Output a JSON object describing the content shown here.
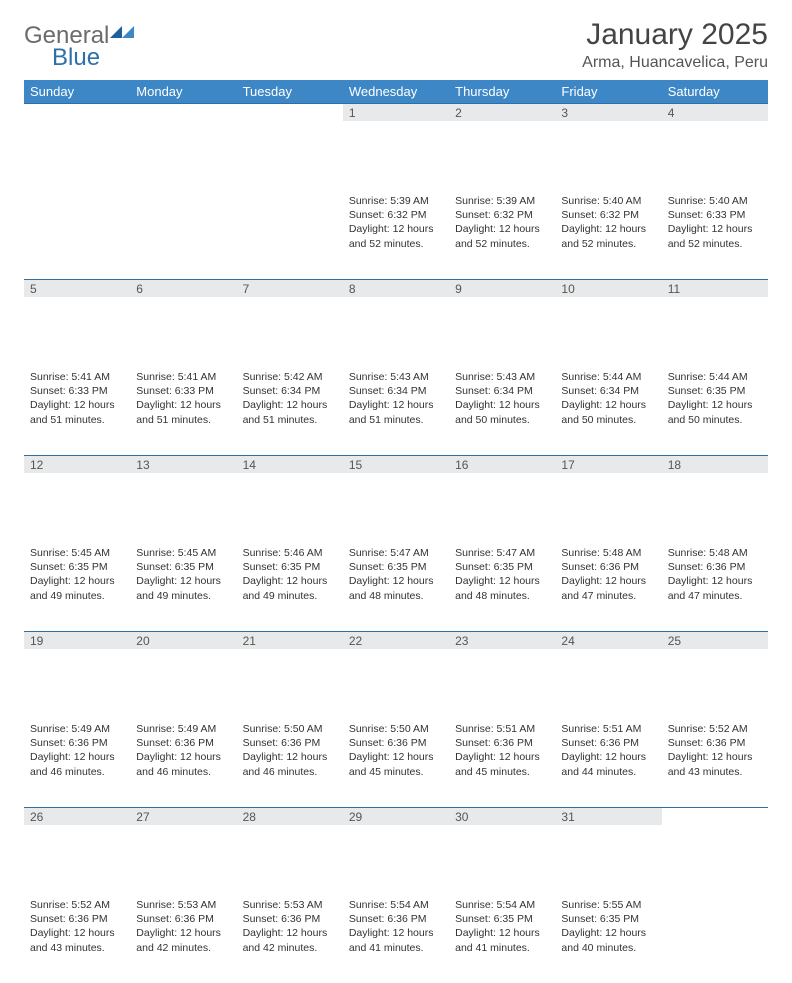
{
  "logo": {
    "text1": "General",
    "text2": "Blue"
  },
  "title": "January 2025",
  "location": "Arma, Huancavelica, Peru",
  "colors": {
    "header_bg": "#3d87c7",
    "header_border": "#2f6fa8",
    "daynum_bg": "#e7e9eb",
    "logo_gray": "#6b6b6b",
    "logo_blue": "#2f6fa8"
  },
  "weekdays": [
    "Sunday",
    "Monday",
    "Tuesday",
    "Wednesday",
    "Thursday",
    "Friday",
    "Saturday"
  ],
  "weeks": [
    [
      {
        "n": "",
        "sunrise": "",
        "sunset": "",
        "daylight": ""
      },
      {
        "n": "",
        "sunrise": "",
        "sunset": "",
        "daylight": ""
      },
      {
        "n": "",
        "sunrise": "",
        "sunset": "",
        "daylight": ""
      },
      {
        "n": "1",
        "sunrise": "5:39 AM",
        "sunset": "6:32 PM",
        "daylight": "12 hours and 52 minutes."
      },
      {
        "n": "2",
        "sunrise": "5:39 AM",
        "sunset": "6:32 PM",
        "daylight": "12 hours and 52 minutes."
      },
      {
        "n": "3",
        "sunrise": "5:40 AM",
        "sunset": "6:32 PM",
        "daylight": "12 hours and 52 minutes."
      },
      {
        "n": "4",
        "sunrise": "5:40 AM",
        "sunset": "6:33 PM",
        "daylight": "12 hours and 52 minutes."
      }
    ],
    [
      {
        "n": "5",
        "sunrise": "5:41 AM",
        "sunset": "6:33 PM",
        "daylight": "12 hours and 51 minutes."
      },
      {
        "n": "6",
        "sunrise": "5:41 AM",
        "sunset": "6:33 PM",
        "daylight": "12 hours and 51 minutes."
      },
      {
        "n": "7",
        "sunrise": "5:42 AM",
        "sunset": "6:34 PM",
        "daylight": "12 hours and 51 minutes."
      },
      {
        "n": "8",
        "sunrise": "5:43 AM",
        "sunset": "6:34 PM",
        "daylight": "12 hours and 51 minutes."
      },
      {
        "n": "9",
        "sunrise": "5:43 AM",
        "sunset": "6:34 PM",
        "daylight": "12 hours and 50 minutes."
      },
      {
        "n": "10",
        "sunrise": "5:44 AM",
        "sunset": "6:34 PM",
        "daylight": "12 hours and 50 minutes."
      },
      {
        "n": "11",
        "sunrise": "5:44 AM",
        "sunset": "6:35 PM",
        "daylight": "12 hours and 50 minutes."
      }
    ],
    [
      {
        "n": "12",
        "sunrise": "5:45 AM",
        "sunset": "6:35 PM",
        "daylight": "12 hours and 49 minutes."
      },
      {
        "n": "13",
        "sunrise": "5:45 AM",
        "sunset": "6:35 PM",
        "daylight": "12 hours and 49 minutes."
      },
      {
        "n": "14",
        "sunrise": "5:46 AM",
        "sunset": "6:35 PM",
        "daylight": "12 hours and 49 minutes."
      },
      {
        "n": "15",
        "sunrise": "5:47 AM",
        "sunset": "6:35 PM",
        "daylight": "12 hours and 48 minutes."
      },
      {
        "n": "16",
        "sunrise": "5:47 AM",
        "sunset": "6:35 PM",
        "daylight": "12 hours and 48 minutes."
      },
      {
        "n": "17",
        "sunrise": "5:48 AM",
        "sunset": "6:36 PM",
        "daylight": "12 hours and 47 minutes."
      },
      {
        "n": "18",
        "sunrise": "5:48 AM",
        "sunset": "6:36 PM",
        "daylight": "12 hours and 47 minutes."
      }
    ],
    [
      {
        "n": "19",
        "sunrise": "5:49 AM",
        "sunset": "6:36 PM",
        "daylight": "12 hours and 46 minutes."
      },
      {
        "n": "20",
        "sunrise": "5:49 AM",
        "sunset": "6:36 PM",
        "daylight": "12 hours and 46 minutes."
      },
      {
        "n": "21",
        "sunrise": "5:50 AM",
        "sunset": "6:36 PM",
        "daylight": "12 hours and 46 minutes."
      },
      {
        "n": "22",
        "sunrise": "5:50 AM",
        "sunset": "6:36 PM",
        "daylight": "12 hours and 45 minutes."
      },
      {
        "n": "23",
        "sunrise": "5:51 AM",
        "sunset": "6:36 PM",
        "daylight": "12 hours and 45 minutes."
      },
      {
        "n": "24",
        "sunrise": "5:51 AM",
        "sunset": "6:36 PM",
        "daylight": "12 hours and 44 minutes."
      },
      {
        "n": "25",
        "sunrise": "5:52 AM",
        "sunset": "6:36 PM",
        "daylight": "12 hours and 43 minutes."
      }
    ],
    [
      {
        "n": "26",
        "sunrise": "5:52 AM",
        "sunset": "6:36 PM",
        "daylight": "12 hours and 43 minutes."
      },
      {
        "n": "27",
        "sunrise": "5:53 AM",
        "sunset": "6:36 PM",
        "daylight": "12 hours and 42 minutes."
      },
      {
        "n": "28",
        "sunrise": "5:53 AM",
        "sunset": "6:36 PM",
        "daylight": "12 hours and 42 minutes."
      },
      {
        "n": "29",
        "sunrise": "5:54 AM",
        "sunset": "6:36 PM",
        "daylight": "12 hours and 41 minutes."
      },
      {
        "n": "30",
        "sunrise": "5:54 AM",
        "sunset": "6:35 PM",
        "daylight": "12 hours and 41 minutes."
      },
      {
        "n": "31",
        "sunrise": "5:55 AM",
        "sunset": "6:35 PM",
        "daylight": "12 hours and 40 minutes."
      },
      {
        "n": "",
        "sunrise": "",
        "sunset": "",
        "daylight": ""
      }
    ]
  ],
  "labels": {
    "sunrise": "Sunrise:",
    "sunset": "Sunset:",
    "daylight": "Daylight:"
  }
}
